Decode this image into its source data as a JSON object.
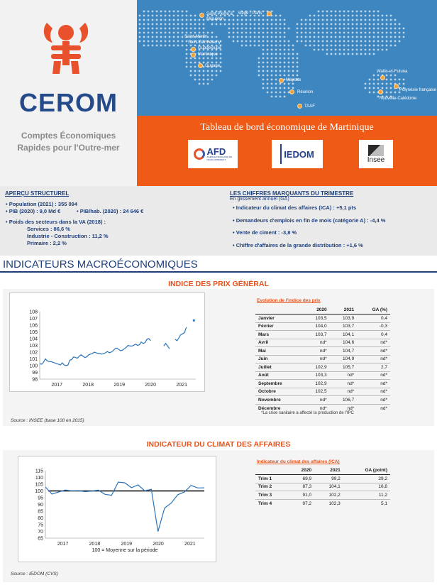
{
  "header": {
    "org_name": "CEROM",
    "tagline_1": "Comptes Économiques",
    "tagline_2": "Rapides pour l'Outre-mer",
    "dashboard_title": "Tableau de bord économique de Martinique",
    "map_labels": [
      "Saint-Pierre & Miquelon",
      "Siège - Paris",
      "Saint-Martin",
      "Saint-Barthélemy",
      "Guadeloupe",
      "Martinique",
      "Guyane",
      "Mayotte",
      "Réunion",
      "TAAF",
      "Wallis-et-Futuna",
      "Polynésie française",
      "Nouvelle-Calédonie"
    ],
    "partners": {
      "afd": "AFD",
      "afd_sub": "AGENCE FRANÇAISE DE DÉVELOPPEMENT",
      "iedom": "IEDOM",
      "insee": "Insee"
    },
    "colors": {
      "orange": "#ef5a16",
      "map_blue": "#3e86c0",
      "navy": "#1f3f7a",
      "logo_red": "#e8512b"
    }
  },
  "apercu": {
    "title": "APERÇU STRUCTUREL",
    "population": "Population (2021) : 355 094",
    "pib": "PIB (2020) : 9,0 Md €",
    "pib_hab": "PIB/hab. (2020) : 24 646 €",
    "poids": "Poids des secteurs dans la VA (2018) :",
    "services": "Services : 86,6 %",
    "industrie": "Industrie - Construction : 11,2 %",
    "primaire": "Primaire : 2,2 %"
  },
  "chiffres": {
    "title": "LES CHIFFRES MARQUANTS DU TRIMESTRE",
    "subtitle": "En glissement annuel (GA)",
    "items": [
      "Indicateur du climat des affaires (ICA) : +5,1 pts",
      "Demandeurs d'emplois en fin de mois (catégorie A) : -4,4 %",
      "Vente de ciment : -3,8 %",
      "Chiffre d'affaires de la grande distribution : +1,6 %"
    ]
  },
  "macro_title": "INDICATEURS MACROÉCONOMIQUES",
  "prix": {
    "title": "INDICE DES PRIX GÉNÉRAL",
    "source": "Source : INSEE (base 100 en 2015)",
    "table_caption": "Evolution de l'indice des prix",
    "headers": [
      "",
      "2020",
      "2021",
      "GA (%)"
    ],
    "rows": [
      [
        "Janvier",
        "103,5",
        "103,9",
        "0,4"
      ],
      [
        "Février",
        "104,0",
        "103,7",
        "-0,3"
      ],
      [
        "Mars",
        "103,7",
        "104,1",
        "0,4"
      ],
      [
        "Avril",
        "nd*",
        "104,6",
        "nd*"
      ],
      [
        "Mai",
        "nd*",
        "104,7",
        "nd*"
      ],
      [
        "Juin",
        "nd*",
        "104,9",
        "nd*"
      ],
      [
        "Juillet",
        "102,9",
        "105,7",
        "2,7"
      ],
      [
        "Août",
        "103,3",
        "nd*",
        "nd*"
      ],
      [
        "Septembre",
        "102,9",
        "nd*",
        "nd*"
      ],
      [
        "Octobre",
        "102,5",
        "nd*",
        "nd*"
      ],
      [
        "Novembre",
        "nd*",
        "106,7",
        "nd*"
      ],
      [
        "Décembre",
        "nd*",
        "nd*",
        "nd*"
      ]
    ],
    "note": "*La crise sanitaire a affecté la production de l'IPC"
  },
  "ica": {
    "title": "INDICATEUR DU CLIMAT DES AFFAIRES",
    "source": "Source : IEDOM (CVS)",
    "table_caption": "Indicateur du climat des affaires (ICA)",
    "headers": [
      "",
      "2020",
      "2021",
      "GA (point)"
    ],
    "rows": [
      [
        "Trim 1",
        "69,9",
        "99,2",
        "29,2"
      ],
      [
        "Trim 2",
        "87,3",
        "104,1",
        "16,8"
      ],
      [
        "Trim 3",
        "91,0",
        "102,2",
        "11,2"
      ],
      [
        "Trim 4",
        "97,2",
        "102,3",
        "5,1"
      ]
    ]
  },
  "chart_data": [
    {
      "type": "line",
      "xlabel": "",
      "ylabel": "",
      "x_ticks": [
        "2017",
        "2018",
        "2019",
        "2020",
        "2021"
      ],
      "ylim": [
        98,
        108
      ],
      "y_ticks": [
        98,
        99,
        100,
        101,
        102,
        103,
        104,
        105,
        106,
        107,
        108
      ],
      "grid": false,
      "series": [
        {
          "values": [
            100.3,
            100.2,
            100.5,
            101.0,
            100.7,
            100.6,
            100.6,
            100.5,
            100.4,
            100.3,
            100.2,
            100.1,
            100.4,
            100.1,
            100.0,
            100.1,
            100.8,
            100.9,
            101.3,
            101.2,
            101.1,
            101.4,
            101.6,
            101.4,
            101.2,
            101.3,
            101.6,
            101.7,
            101.8,
            102.0,
            101.9,
            101.8,
            101.8,
            101.7,
            101.8,
            101.9,
            102.1,
            101.9,
            102.0,
            102.2,
            102.5,
            102.6,
            102.4,
            102.2,
            102.3,
            102.5,
            102.7,
            103.0,
            102.9,
            102.9,
            103.0,
            103.2,
            103.0,
            103.1,
            103.5,
            103.3,
            103.4,
            103.9,
            104.0,
            103.7,
            null,
            null,
            null,
            null,
            null,
            null,
            102.9,
            103.3,
            102.9,
            102.5,
            null,
            null,
            103.9,
            103.7,
            104.1,
            104.6,
            104.7,
            104.9,
            105.7,
            null,
            null,
            null,
            106.7,
            null
          ]
        }
      ]
    },
    {
      "type": "line",
      "xlabel": "100 = Moyenne sur la période",
      "ylabel": "",
      "x_ticks": [
        "2017",
        "2018",
        "2019",
        "2020",
        "2021"
      ],
      "ylim": [
        65,
        115
      ],
      "y_ticks": [
        65,
        70,
        75,
        80,
        85,
        90,
        95,
        100,
        105,
        110,
        115
      ],
      "grid": false,
      "reference_line": 100,
      "series": [
        {
          "values": [
            102.9,
            97.7,
            99.2,
            100.7,
            100.0,
            100.2,
            99.5,
            99.9,
            100.6,
            97.5,
            96.8,
            106.6,
            106.0,
            102.4,
            104.5,
            100.1,
            101.2,
            69.9,
            87.3,
            91.0,
            97.2,
            99.2,
            104.1,
            102.2,
            102.3
          ]
        }
      ]
    }
  ]
}
